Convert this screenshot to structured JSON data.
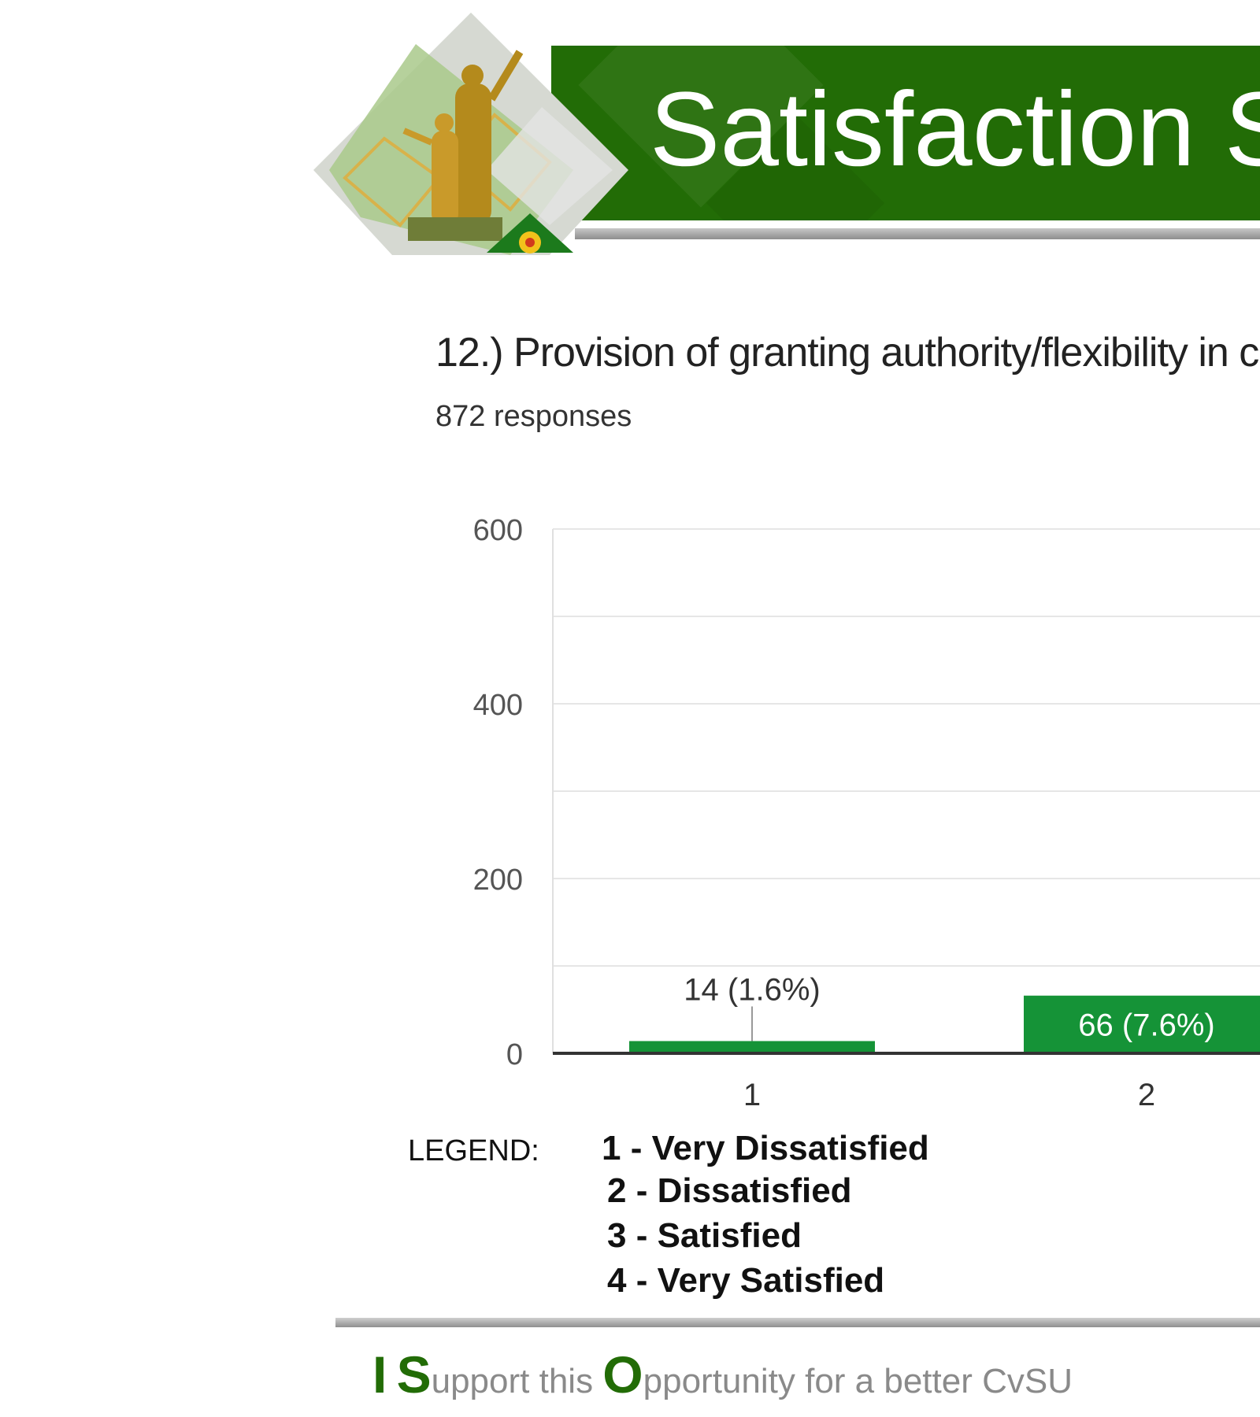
{
  "header": {
    "title": "Satisfaction S"
  },
  "question": {
    "text": "12.) Provision of granting authority/flexibility in c",
    "responses": "872 responses"
  },
  "chart_data": {
    "type": "bar",
    "categories": [
      "1",
      "2"
    ],
    "values": [
      14,
      66
    ],
    "data_labels": [
      "14 (1.6%)",
      "66 (7.6%)"
    ],
    "y_ticks": [
      "0",
      "200",
      "400",
      "600"
    ],
    "ylim": [
      0,
      600
    ],
    "grid": true,
    "colors": {
      "bar": "#159337"
    }
  },
  "legend": {
    "label": "LEGEND:",
    "items": [
      "1  -  Very Dissatisfied",
      "2 -  Dissatisfied",
      "3 -  Satisfied",
      "4 - Very Satisfied"
    ]
  },
  "footer": {
    "i": "I",
    "s": "S",
    "s_rest": "upport this ",
    "o": "O",
    "o_rest": "pportunity for a better CvSU"
  }
}
